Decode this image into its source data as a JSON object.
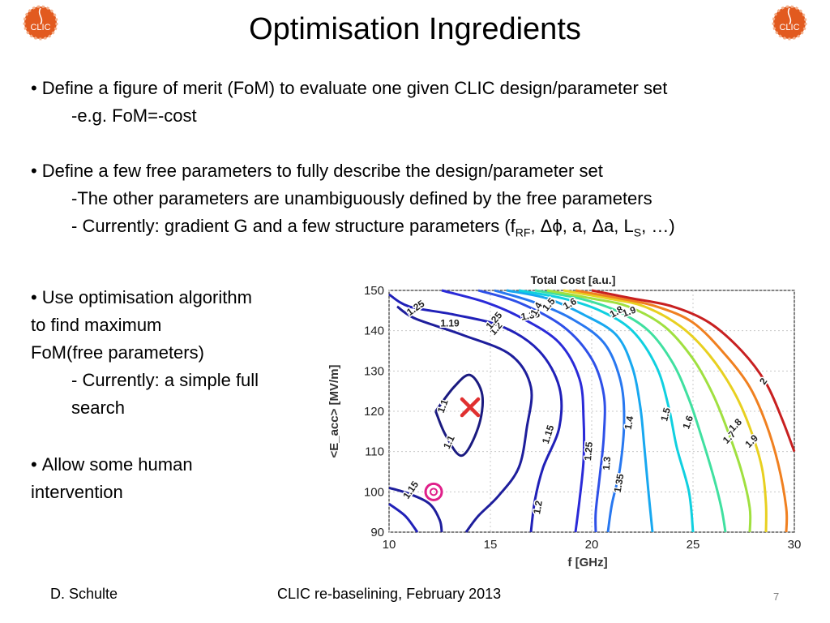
{
  "slide": {
    "title": "Optimisation Ingredients",
    "logo_text": "CLIC",
    "colors": {
      "logo_orange": "#e25a1f",
      "marker_red": "#e03030",
      "marker_magenta": "#e0208a"
    }
  },
  "bullets": {
    "b1_main": "Define a figure of merit (FoM) to evaluate one given CLIC design/parameter set",
    "b1_sub": "-e.g. FoM=-cost",
    "b2_main": "Define a few free parameters to fully describe the design/parameter set",
    "b2_sub1": "-The other parameters are unambiguously defined by the free parameters",
    "b2_sub2_pre": "- Currently: gradient G and a few structure parameters (f",
    "b2_sub2_sub1": "RF",
    "b2_sub2_mid": ", Δϕ, a, Δa, L",
    "b2_sub2_sub2": "S",
    "b2_sub2_post": ", …)",
    "b3_line1": "Use optimisation algorithm",
    "b3_line2": "to find maximum",
    "b3_line3": "FoM(free parameters)",
    "b3_sub1": "- Currently: a simple full",
    "b3_sub2": "search",
    "b4_line1": "Allow some human",
    "b4_line2": "intervention"
  },
  "footer": {
    "author": "D. Schulte",
    "event": "CLIC re-baselining, February 2013",
    "page": "7"
  },
  "chart_data": {
    "type": "contour",
    "title": "Total Cost [a.u.]",
    "xlabel": "f [GHz]",
    "ylabel": "<E_acc> [MV/m]",
    "xlim": [
      10,
      30
    ],
    "ylim": [
      90,
      150
    ],
    "xticks": [
      10,
      15,
      20,
      25,
      30
    ],
    "yticks": [
      90,
      100,
      110,
      120,
      130,
      140,
      150
    ],
    "contour_labels": [
      "1.1",
      "1.1",
      "1.15",
      "1.15",
      "1.19",
      "1.2",
      "1.2",
      "1.25",
      "1.25",
      "1.25",
      "1.3",
      "1.35",
      "1.35",
      "1.4",
      "1.4",
      "1.5",
      "1.5",
      "1.6",
      "1.6",
      "1.7",
      "1.8",
      "1.8",
      "1.9",
      "1.9",
      "2"
    ],
    "contours": [
      {
        "level": 1.1,
        "color": "#1a1a80",
        "points": [
          [
            12.3,
            120
          ],
          [
            13.2,
            126
          ],
          [
            14.0,
            129
          ],
          [
            14.6,
            124
          ],
          [
            14.4,
            116
          ],
          [
            13.6,
            109
          ],
          [
            12.8,
            114
          ],
          [
            12.3,
            120
          ]
        ]
      },
      {
        "level": 1.15,
        "color": "#1e1e9c",
        "points": [
          [
            10.4,
            146
          ],
          [
            11.3,
            143
          ],
          [
            13.6,
            139
          ],
          [
            16.0,
            134
          ],
          [
            17.0,
            126
          ],
          [
            16.8,
            116
          ],
          [
            16.4,
            106
          ],
          [
            15.4,
            99
          ],
          [
            14.4,
            94
          ],
          [
            13.8,
            90
          ]
        ]
      },
      {
        "level": 1.15,
        "color": "#1e1e9c",
        "points": [
          [
            10.0,
            101
          ],
          [
            11.0,
            99.5
          ],
          [
            12.0,
            97
          ],
          [
            12.5,
            93
          ],
          [
            12.6,
            90
          ]
        ]
      },
      {
        "level": 1.2,
        "color": "#2020b8",
        "points": [
          [
            10.0,
            149
          ],
          [
            11.0,
            146
          ],
          [
            13.2,
            144
          ],
          [
            15.6,
            141
          ],
          [
            17.4,
            135
          ],
          [
            18.4,
            126
          ],
          [
            18.4,
            116
          ],
          [
            17.6,
            106
          ],
          [
            17.2,
            98
          ],
          [
            17.0,
            90
          ]
        ]
      },
      {
        "level": 1.2,
        "color": "#2020b8",
        "points": [
          [
            10.0,
            97
          ],
          [
            10.8,
            94
          ],
          [
            11.4,
            90
          ]
        ]
      },
      {
        "level": 1.25,
        "color": "#2a2ad8",
        "points": [
          [
            12.6,
            150
          ],
          [
            14.8,
            147
          ],
          [
            16.6,
            143
          ],
          [
            18.4,
            137
          ],
          [
            19.4,
            128
          ],
          [
            19.6,
            118
          ],
          [
            19.6,
            108
          ],
          [
            19.4,
            98
          ],
          [
            19.2,
            90
          ]
        ]
      },
      {
        "level": 1.3,
        "color": "#2e50e8",
        "points": [
          [
            14.4,
            150
          ],
          [
            16.4,
            147
          ],
          [
            18.6,
            141
          ],
          [
            20.0,
            133
          ],
          [
            20.6,
            124
          ],
          [
            20.6,
            114
          ],
          [
            20.4,
            104
          ],
          [
            20.2,
            95
          ],
          [
            20.2,
            90
          ]
        ]
      },
      {
        "level": 1.35,
        "color": "#2878f0",
        "points": [
          [
            15.2,
            150
          ],
          [
            17.2,
            147
          ],
          [
            19.0,
            143
          ],
          [
            20.6,
            137
          ],
          [
            21.4,
            128
          ],
          [
            21.6,
            118
          ],
          [
            21.4,
            106
          ],
          [
            21.0,
            97
          ],
          [
            20.8,
            90
          ]
        ]
      },
      {
        "level": 1.4,
        "color": "#18a8f0",
        "points": [
          [
            15.8,
            150
          ],
          [
            17.8,
            148
          ],
          [
            19.6,
            144
          ],
          [
            21.2,
            139
          ],
          [
            22.0,
            131
          ],
          [
            22.4,
            121
          ],
          [
            22.6,
            111
          ],
          [
            22.8,
            100
          ],
          [
            23.0,
            90
          ]
        ]
      },
      {
        "level": 1.5,
        "color": "#10d0e0",
        "points": [
          [
            16.4,
            150
          ],
          [
            18.6,
            148
          ],
          [
            20.4,
            145
          ],
          [
            22.0,
            140
          ],
          [
            23.2,
            131
          ],
          [
            23.8,
            121
          ],
          [
            24.2,
            111
          ],
          [
            24.8,
            100
          ],
          [
            25.0,
            90
          ]
        ]
      },
      {
        "level": 1.6,
        "color": "#40e0a0",
        "points": [
          [
            17.2,
            150
          ],
          [
            19.4,
            148
          ],
          [
            21.2,
            145
          ],
          [
            22.8,
            140
          ],
          [
            24.0,
            132
          ],
          [
            24.8,
            123
          ],
          [
            25.4,
            114
          ],
          [
            26.0,
            104
          ],
          [
            26.4,
            96
          ],
          [
            26.6,
            90
          ]
        ]
      },
      {
        "level": 1.7,
        "color": "#a0e040",
        "points": [
          [
            17.8,
            150
          ],
          [
            20.0,
            148
          ],
          [
            21.8,
            146
          ],
          [
            23.6,
            141
          ],
          [
            25.0,
            133
          ],
          [
            26.0,
            124
          ],
          [
            26.8,
            114
          ],
          [
            27.4,
            105
          ],
          [
            27.8,
            96
          ],
          [
            27.8,
            90
          ]
        ]
      },
      {
        "level": 1.8,
        "color": "#e8d020",
        "points": [
          [
            18.6,
            150
          ],
          [
            20.8,
            148
          ],
          [
            22.6,
            146
          ],
          [
            24.4,
            141
          ],
          [
            25.8,
            134
          ],
          [
            27.0,
            125
          ],
          [
            27.8,
            116
          ],
          [
            28.4,
            106
          ],
          [
            28.6,
            97
          ],
          [
            28.6,
            90
          ]
        ]
      },
      {
        "level": 1.9,
        "color": "#f08020",
        "points": [
          [
            19.2,
            150
          ],
          [
            21.4,
            148
          ],
          [
            23.2,
            146
          ],
          [
            25.0,
            142
          ],
          [
            26.6,
            134
          ],
          [
            27.8,
            126
          ],
          [
            28.6,
            117
          ],
          [
            29.2,
            107
          ],
          [
            29.6,
            96
          ],
          [
            29.6,
            90
          ]
        ]
      },
      {
        "level": 2.0,
        "color": "#c82020",
        "points": [
          [
            20.0,
            150
          ],
          [
            22.0,
            148
          ],
          [
            24.0,
            146
          ],
          [
            25.8,
            142
          ],
          [
            27.4,
            135
          ],
          [
            28.6,
            127
          ],
          [
            29.4,
            118
          ],
          [
            30.0,
            110
          ]
        ]
      }
    ],
    "markers": [
      {
        "type": "optimum-cross",
        "x": 14,
        "y": 121
      },
      {
        "type": "reference-circle",
        "x": 12.2,
        "y": 100
      }
    ],
    "grid": true
  }
}
